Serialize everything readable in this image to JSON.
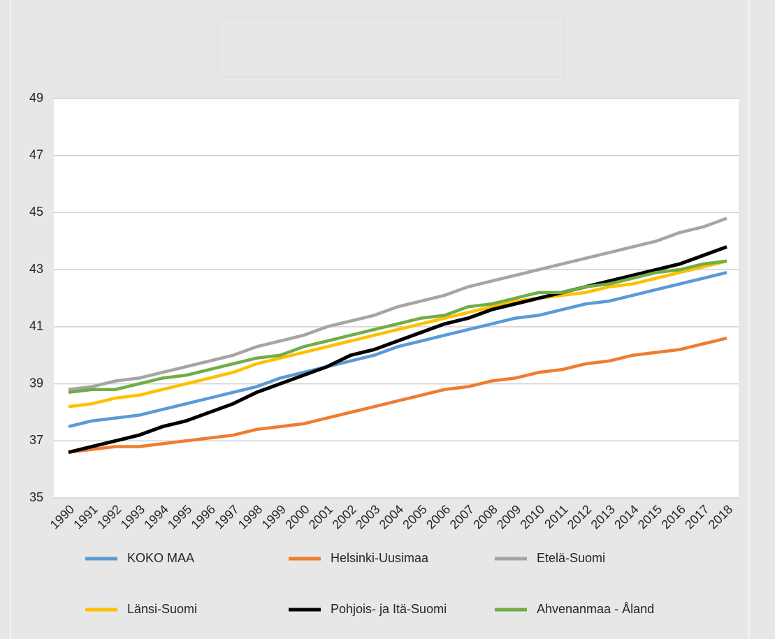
{
  "chart_data": {
    "type": "line",
    "categories": [
      "1990",
      "1991",
      "1992",
      "1993",
      "1994",
      "1995",
      "1996",
      "1997",
      "1998",
      "1999",
      "2000",
      "2001",
      "2002",
      "2003",
      "2004",
      "2005",
      "2006",
      "2007",
      "2008",
      "2009",
      "2010",
      "2011",
      "2012",
      "2013",
      "2014",
      "2015",
      "2016",
      "2017",
      "2018"
    ],
    "series": [
      {
        "name": "KOKO MAA",
        "color": "#5b9bd5",
        "values": [
          37.5,
          37.7,
          37.8,
          37.9,
          38.1,
          38.3,
          38.5,
          38.7,
          38.9,
          39.2,
          39.4,
          39.6,
          39.8,
          40.0,
          40.3,
          40.5,
          40.7,
          40.9,
          41.1,
          41.3,
          41.4,
          41.6,
          41.8,
          41.9,
          42.1,
          42.3,
          42.5,
          42.7,
          42.9
        ]
      },
      {
        "name": "Helsinki-Uusimaa",
        "color": "#ed7d31",
        "values": [
          36.6,
          36.7,
          36.8,
          36.8,
          36.9,
          37.0,
          37.1,
          37.2,
          37.4,
          37.5,
          37.6,
          37.8,
          38.0,
          38.2,
          38.4,
          38.6,
          38.8,
          38.9,
          39.1,
          39.2,
          39.4,
          39.5,
          39.7,
          39.8,
          40.0,
          40.1,
          40.2,
          40.4,
          40.6
        ]
      },
      {
        "name": "Etelä-Suomi",
        "color": "#a5a5a5",
        "values": [
          38.8,
          38.9,
          39.1,
          39.2,
          39.4,
          39.6,
          39.8,
          40.0,
          40.3,
          40.5,
          40.7,
          41.0,
          41.2,
          41.4,
          41.7,
          41.9,
          42.1,
          42.4,
          42.6,
          42.8,
          43.0,
          43.2,
          43.4,
          43.6,
          43.8,
          44.0,
          44.3,
          44.5,
          44.8
        ]
      },
      {
        "name": "Länsi-Suomi",
        "color": "#ffc000",
        "values": [
          38.2,
          38.3,
          38.5,
          38.6,
          38.8,
          39.0,
          39.2,
          39.4,
          39.7,
          39.9,
          40.1,
          40.3,
          40.5,
          40.7,
          40.9,
          41.1,
          41.3,
          41.5,
          41.7,
          41.9,
          42.0,
          42.1,
          42.2,
          42.4,
          42.5,
          42.7,
          42.9,
          43.1,
          43.3
        ]
      },
      {
        "name": "Pohjois- ja Itä-Suomi",
        "color": "#000000",
        "values": [
          36.6,
          36.8,
          37.0,
          37.2,
          37.5,
          37.7,
          38.0,
          38.3,
          38.7,
          39.0,
          39.3,
          39.6,
          40.0,
          40.2,
          40.5,
          40.8,
          41.1,
          41.3,
          41.6,
          41.8,
          42.0,
          42.2,
          42.4,
          42.6,
          42.8,
          43.0,
          43.2,
          43.5,
          43.8
        ]
      },
      {
        "name": "Ahvenanmaa - Åland",
        "color": "#70ad47",
        "values": [
          38.7,
          38.8,
          38.8,
          39.0,
          39.2,
          39.3,
          39.5,
          39.7,
          39.9,
          40.0,
          40.3,
          40.5,
          40.7,
          40.9,
          41.1,
          41.3,
          41.4,
          41.7,
          41.8,
          42.0,
          42.2,
          42.2,
          42.4,
          42.5,
          42.7,
          42.9,
          43.0,
          43.2,
          43.3
        ]
      }
    ],
    "ylim": [
      35,
      49
    ],
    "yticks": [
      35,
      37,
      39,
      41,
      43,
      45,
      47,
      49
    ],
    "grid": true
  }
}
